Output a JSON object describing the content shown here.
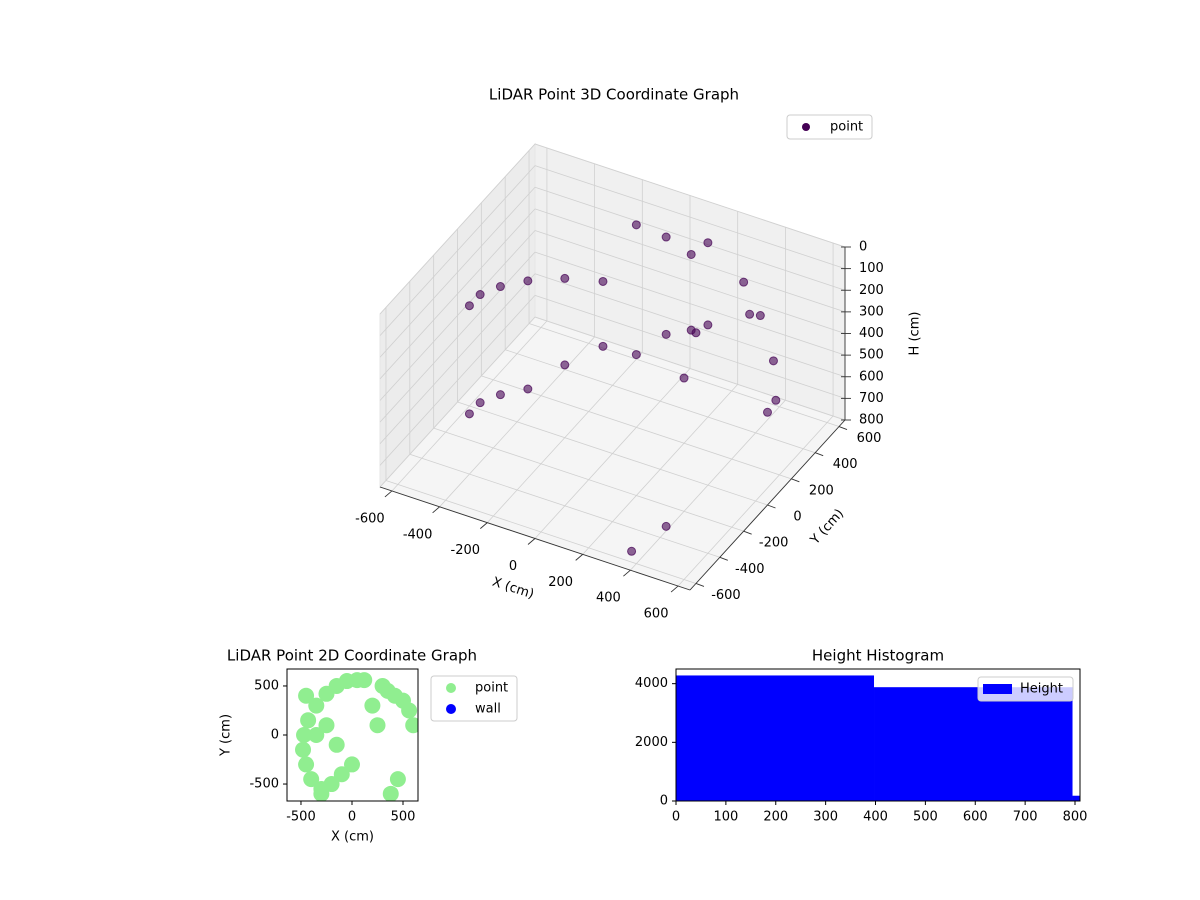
{
  "chart_data": [
    {
      "type": "scatter3d",
      "title": "LiDAR Point 3D Coordinate Graph",
      "xlabel": "X (cm)",
      "ylabel": "Y (cm)",
      "zlabel": "H (cm)",
      "xlim": [
        -650,
        650
      ],
      "ylim": [
        -650,
        650
      ],
      "zlim": [
        0,
        800
      ],
      "z_inverted": true,
      "xticks": [
        -600,
        -400,
        -200,
        0,
        200,
        400,
        600
      ],
      "yticks": [
        -600,
        -400,
        -200,
        0,
        200,
        400,
        600
      ],
      "zticks": [
        0,
        100,
        200,
        300,
        400,
        500,
        600,
        700,
        800
      ],
      "grid": true,
      "legend": "upper right",
      "series": [
        {
          "name": "point",
          "color": "#440154",
          "x": [
            -450,
            -480,
            -470,
            -430,
            -350,
            -250,
            -150,
            -50,
            50,
            120,
            -450,
            -480,
            -470,
            -430,
            -350,
            -250,
            -150,
            -50,
            50,
            120,
            300,
            350,
            420,
            500,
            560,
            600,
            450,
            380,
            200,
            250
          ],
          "y": [
            -300,
            -150,
            0,
            150,
            300,
            420,
            500,
            550,
            560,
            560,
            -300,
            -150,
            0,
            150,
            300,
            420,
            500,
            550,
            560,
            560,
            500,
            450,
            400,
            350,
            250,
            100,
            -450,
            -600,
            300,
            100
          ],
          "z": [
            100,
            150,
            200,
            250,
            300,
            350,
            100,
            150,
            200,
            120,
            600,
            650,
            700,
            750,
            700,
            650,
            700,
            600,
            550,
            500,
            200,
            300,
            250,
            400,
            500,
            450,
            700,
            750,
            350,
            420
          ]
        }
      ]
    },
    {
      "type": "scatter",
      "title": "LiDAR Point 2D Coordinate Graph",
      "xlabel": "X (cm)",
      "ylabel": "Y (cm)",
      "xlim": [
        -637,
        647
      ],
      "ylim": [
        -673,
        673
      ],
      "xticks": [
        -500,
        0,
        500
      ],
      "yticks": [
        -500,
        0,
        500
      ],
      "legend": "outside right",
      "series": [
        {
          "name": "point",
          "color": "#90ee90",
          "x": [
            -450,
            -480,
            -470,
            -430,
            -350,
            -250,
            -150,
            -50,
            50,
            120,
            -400,
            -300,
            -200,
            -100,
            0,
            -350,
            -250,
            -150,
            -450,
            -300,
            300,
            350,
            420,
            500,
            560,
            600,
            450,
            380,
            200,
            250
          ],
          "y": [
            -300,
            -150,
            0,
            150,
            300,
            420,
            500,
            550,
            560,
            560,
            -450,
            -550,
            -500,
            -400,
            -300,
            0,
            100,
            -100,
            400,
            -600,
            500,
            450,
            400,
            350,
            250,
            100,
            -450,
            -600,
            300,
            100
          ]
        },
        {
          "name": "wall",
          "color": "#0000ff",
          "x": [],
          "y": []
        }
      ]
    },
    {
      "type": "histogram",
      "title": "Height Histogram",
      "bins": [
        0,
        397,
        795,
        810
      ],
      "xlim": [
        0,
        810
      ],
      "ylim": [
        0,
        4500
      ],
      "xticks": [
        0,
        100,
        200,
        300,
        400,
        500,
        600,
        700,
        800
      ],
      "yticks": [
        0,
        2000,
        4000
      ],
      "legend": "upper right",
      "series": [
        {
          "name": "Height",
          "color": "#0000ff",
          "values": [
            4280,
            3880,
            180
          ]
        }
      ]
    }
  ]
}
